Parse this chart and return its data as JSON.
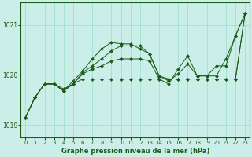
{
  "title": "Graphe pression niveau de la mer (hPa)",
  "bg_color": "#cceee8",
  "grid_color": "#99ddcc",
  "line_color": "#1a5c1a",
  "marker_color": "#1a5c1a",
  "xlim": [
    -0.5,
    23.5
  ],
  "ylim": [
    1018.75,
    1021.45
  ],
  "yticks": [
    1019,
    1020,
    1021
  ],
  "xticks": [
    0,
    1,
    2,
    3,
    4,
    5,
    6,
    7,
    8,
    9,
    10,
    11,
    12,
    13,
    14,
    15,
    16,
    17,
    18,
    19,
    20,
    21,
    22,
    23
  ],
  "series": [
    [
      1019.15,
      1019.55,
      1019.82,
      1019.82,
      1019.72,
      1019.82,
      1020.05,
      1020.18,
      1020.32,
      1020.48,
      1020.58,
      1020.58,
      1020.58,
      1020.42,
      1019.98,
      1019.88,
      1020.02,
      1020.22,
      1019.98,
      1019.98,
      1020.18,
      1020.18,
      1020.78,
      1021.22
    ],
    [
      1019.15,
      1019.55,
      1019.82,
      1019.82,
      1019.68,
      1019.88,
      1020.08,
      1020.32,
      1020.52,
      1020.65,
      1020.62,
      1020.62,
      1020.52,
      1020.42,
      1019.98,
      1019.92,
      1019.92,
      1019.92,
      1019.92,
      1019.92,
      1019.92,
      1019.92,
      1019.92,
      1021.22
    ],
    [
      1019.15,
      1019.55,
      1019.82,
      1019.82,
      1019.68,
      1019.82,
      1020.02,
      1020.12,
      1020.18,
      1020.28,
      1020.32,
      1020.32,
      1020.32,
      1020.28,
      1019.92,
      1019.82,
      1020.12,
      1020.38,
      1019.98,
      1019.98,
      1019.98,
      1020.32,
      1020.78,
      1021.22
    ],
    [
      1019.15,
      1019.55,
      1019.82,
      1019.82,
      1019.68,
      1019.82,
      1019.92,
      1019.92,
      1019.92,
      1019.92,
      1019.92,
      1019.92,
      1019.92,
      1019.92,
      1019.92,
      1019.92,
      1019.92,
      1019.92,
      1019.92,
      1019.92,
      1019.92,
      1019.92,
      1019.92,
      1021.22
    ]
  ]
}
